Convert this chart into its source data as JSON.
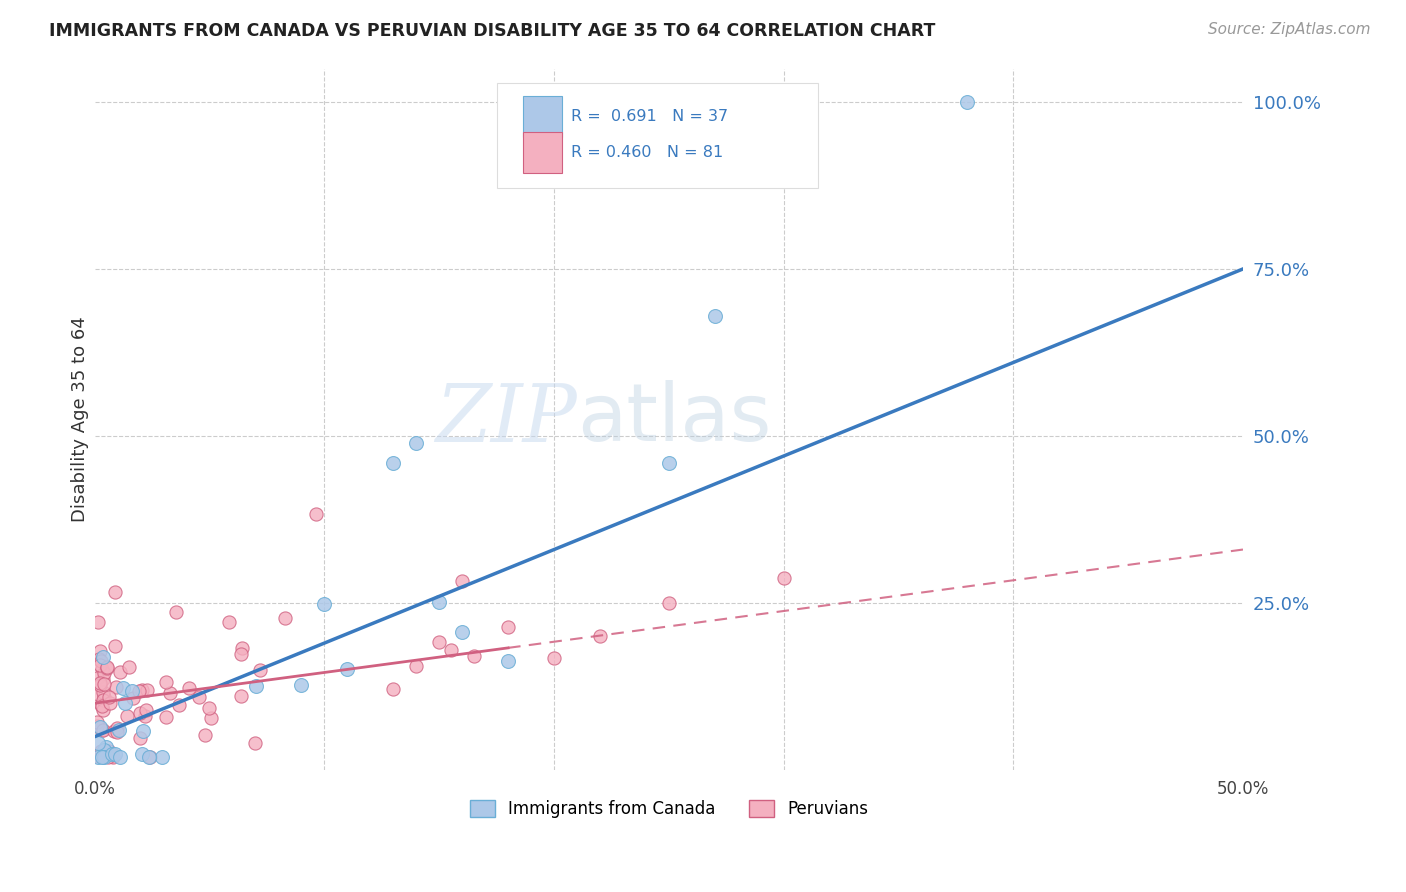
{
  "title": "IMMIGRANTS FROM CANADA VS PERUVIAN DISABILITY AGE 35 TO 64 CORRELATION CHART",
  "source": "Source: ZipAtlas.com",
  "ylabel": "Disability Age 35 to 64",
  "xlim": [
    0.0,
    0.5
  ],
  "ylim": [
    0.0,
    1.05
  ],
  "ytick_labels": [
    "25.0%",
    "50.0%",
    "75.0%",
    "100.0%"
  ],
  "ytick_positions": [
    0.25,
    0.5,
    0.75,
    1.0
  ],
  "watermark_zip": "ZIP",
  "watermark_atlas": "atlas",
  "canada_color": "#adc8e8",
  "canada_edge": "#6aaed6",
  "peru_color": "#f4b0c0",
  "peru_edge": "#d06080",
  "canada_line_color": "#3a7abf",
  "peru_line_color": "#d06080",
  "background_color": "#ffffff",
  "grid_color": "#cccccc",
  "canada_line_x0": 0.0,
  "canada_line_y0": 0.05,
  "canada_line_x1": 0.5,
  "canada_line_y1": 0.75,
  "peru_line_x0": 0.0,
  "peru_line_y0": 0.1,
  "peru_line_x1": 0.5,
  "peru_line_y1": 0.33
}
